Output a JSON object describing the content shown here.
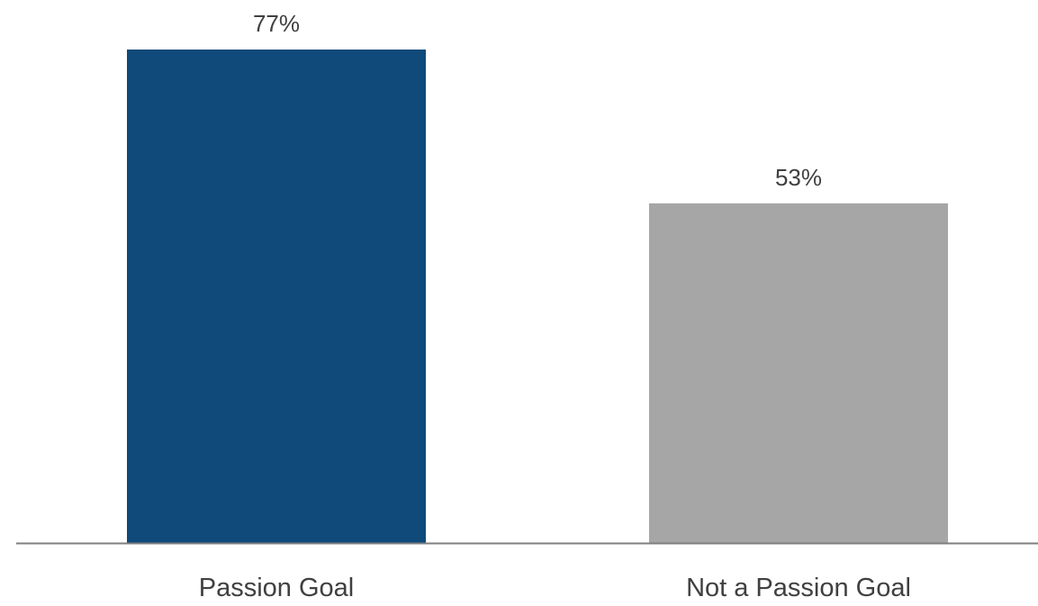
{
  "chart_data": {
    "type": "bar",
    "categories": [
      "Passion Goal",
      "Not a Passion Goal"
    ],
    "values": [
      77,
      53
    ],
    "value_labels": [
      "77%",
      "53%"
    ],
    "ylim": [
      0,
      80
    ],
    "title": "",
    "xlabel": "",
    "ylabel": "",
    "grid": false,
    "legend": "none",
    "colors": [
      "#0f4a7a",
      "#a6a6a6"
    ],
    "axis_color": "#7f7f7f",
    "text_color": "#404040"
  }
}
